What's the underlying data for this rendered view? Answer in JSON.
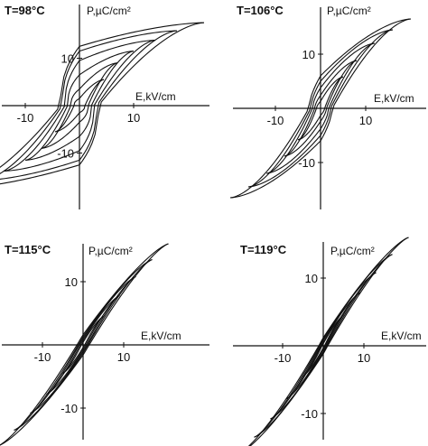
{
  "figure": {
    "colors": {
      "ink": "#111111",
      "background": "#ffffff"
    }
  },
  "chart_data": [
    {
      "type": "line",
      "title": "T=98°C",
      "xlabel": "E,kV/cm",
      "ylabel": "P,µC/cm²",
      "xticks": [
        -10,
        10
      ],
      "yticks": [
        10,
        -10
      ],
      "xlim": [
        -25,
        25
      ],
      "ylim": [
        -19,
        19
      ],
      "grid": false,
      "loops": [
        {
          "emax": 23,
          "pmax": 17.5,
          "pr": 12.5,
          "ec": 3.5,
          "pr_shape": 2.4,
          "tip_shape": 1.6
        },
        {
          "emax": 18,
          "pmax": 15.8,
          "pr": 11.5,
          "ec": 3.2,
          "pr_shape": 2.4,
          "tip_shape": 1.6
        },
        {
          "emax": 14,
          "pmax": 13.8,
          "pr": 9.5,
          "ec": 2.7,
          "pr_shape": 2.4,
          "tip_shape": 1.6
        },
        {
          "emax": 10,
          "pmax": 11.5,
          "pr": 6.5,
          "ec": 2.2,
          "pr_shape": 2.4,
          "tip_shape": 1.6
        },
        {
          "emax": 7,
          "pmax": 9.0,
          "pr": 3.5,
          "ec": 1.6,
          "pr_shape": 2.4,
          "tip_shape": 1.6
        },
        {
          "emax": 4.5,
          "pmax": 5.5,
          "pr": 1.5,
          "ec": 1.0,
          "pr_shape": 2.4,
          "tip_shape": 1.6
        }
      ]
    },
    {
      "type": "line",
      "title": "T=106°C",
      "xlabel": "E,kV/cm",
      "ylabel": "P,µC/cm²",
      "xticks": [
        -10,
        10
      ],
      "yticks": [
        10,
        -10
      ],
      "xlim": [
        -21,
        21
      ],
      "ylim": [
        -17,
        17
      ],
      "grid": false,
      "loops": [
        {
          "emax": 20,
          "pmax": 16.5,
          "pr": 6.0,
          "ec": 2.6,
          "pr_shape": 1.6,
          "tip_shape": 1.6
        },
        {
          "emax": 16,
          "pmax": 14.5,
          "pr": 5.0,
          "ec": 2.2,
          "pr_shape": 1.6,
          "tip_shape": 1.6
        },
        {
          "emax": 12,
          "pmax": 12.0,
          "pr": 3.8,
          "ec": 1.8,
          "pr_shape": 1.6,
          "tip_shape": 1.6
        },
        {
          "emax": 8,
          "pmax": 8.8,
          "pr": 2.4,
          "ec": 1.3,
          "pr_shape": 1.6,
          "tip_shape": 1.6
        },
        {
          "emax": 5,
          "pmax": 5.8,
          "pr": 1.3,
          "ec": 0.9,
          "pr_shape": 1.6,
          "tip_shape": 1.6
        }
      ]
    },
    {
      "type": "line",
      "title": "T=115°C",
      "xlabel": "E,kV/cm",
      "ylabel": "P,µC/cm²",
      "xticks": [
        -10,
        10
      ],
      "yticks": [
        10,
        -10
      ],
      "xlim": [
        -22,
        22
      ],
      "ylim": [
        -17,
        17
      ],
      "grid": false,
      "loops": [
        {
          "emax": 21,
          "pmax": 16.0,
          "pr": 1.6,
          "ec": 1.5,
          "pr_shape": 1.0,
          "tip_shape": 1.3
        },
        {
          "emax": 17,
          "pmax": 13.5,
          "pr": 1.3,
          "ec": 1.2,
          "pr_shape": 1.0,
          "tip_shape": 1.3
        },
        {
          "emax": 13,
          "pmax": 10.8,
          "pr": 1.0,
          "ec": 1.0,
          "pr_shape": 1.0,
          "tip_shape": 1.3
        },
        {
          "emax": 9,
          "pmax": 7.8,
          "pr": 0.7,
          "ec": 0.7,
          "pr_shape": 1.0,
          "tip_shape": 1.3
        },
        {
          "emax": 5,
          "pmax": 4.5,
          "pr": 0.4,
          "ec": 0.4,
          "pr_shape": 1.0,
          "tip_shape": 1.3
        }
      ]
    },
    {
      "type": "line",
      "title": "T=119°C",
      "xlabel": "E,kV/cm",
      "ylabel": "P,µC/cm²",
      "xticks": [
        -10,
        10
      ],
      "yticks": [
        10,
        -10
      ],
      "xlim": [
        -22,
        22
      ],
      "ylim": [
        -17,
        17
      ],
      "grid": false,
      "loops": [
        {
          "emax": 21,
          "pmax": 16.0,
          "pr": 1.2,
          "ec": 1.1,
          "pr_shape": 1.0,
          "tip_shape": 1.3
        },
        {
          "emax": 17,
          "pmax": 13.5,
          "pr": 1.0,
          "ec": 0.9,
          "pr_shape": 1.0,
          "tip_shape": 1.3
        },
        {
          "emax": 13,
          "pmax": 10.8,
          "pr": 0.8,
          "ec": 0.7,
          "pr_shape": 1.0,
          "tip_shape": 1.3
        },
        {
          "emax": 9,
          "pmax": 7.8,
          "pr": 0.5,
          "ec": 0.5,
          "pr_shape": 1.0,
          "tip_shape": 1.3
        },
        {
          "emax": 5,
          "pmax": 4.5,
          "pr": 0.3,
          "ec": 0.3,
          "pr_shape": 1.0,
          "tip_shape": 1.3
        }
      ]
    }
  ]
}
